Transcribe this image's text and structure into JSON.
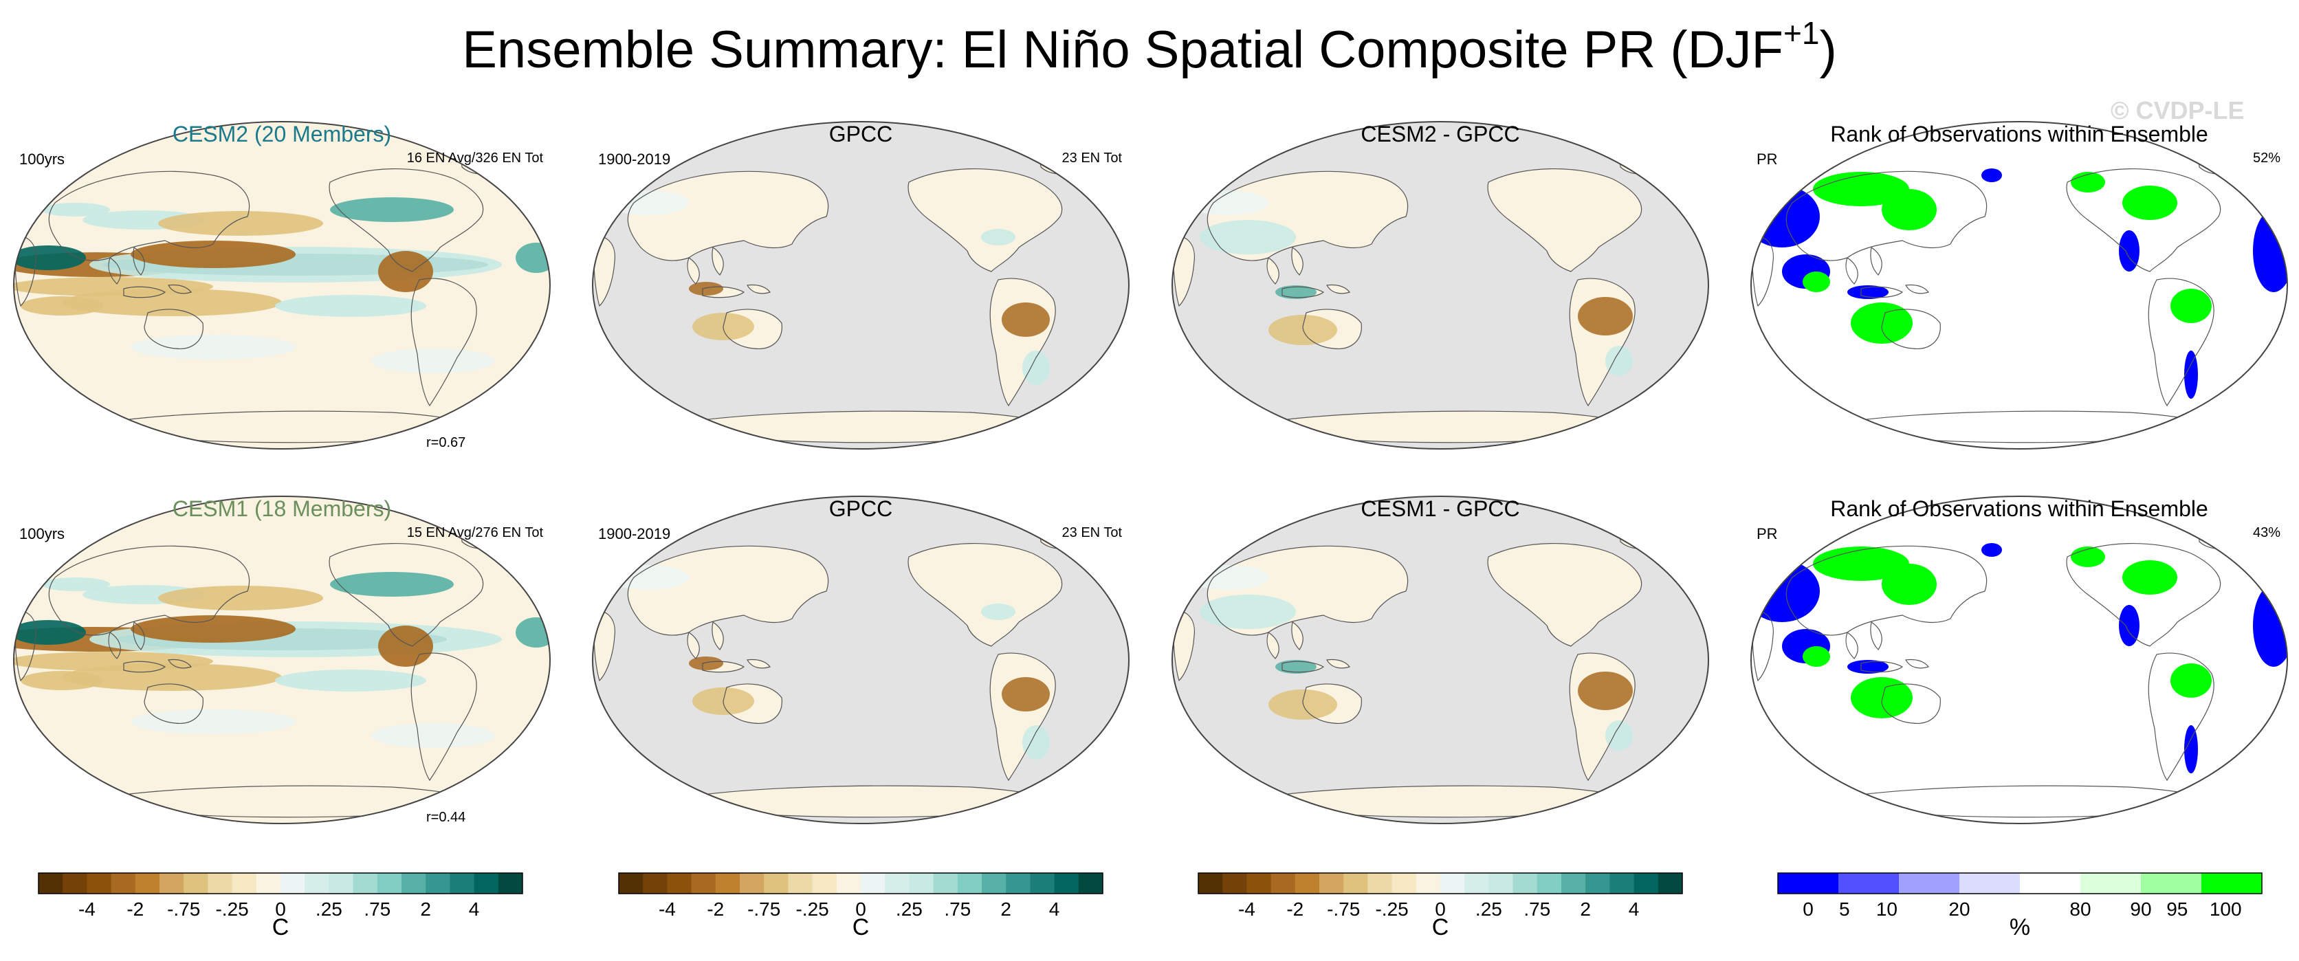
{
  "header": {
    "title_main": "Ensemble Summary: El Niño Spatial Composite PR (DJF",
    "title_sup": "+1",
    "title_end": ")",
    "watermark": "© CVDP-LE"
  },
  "rows": [
    {
      "model": {
        "title": "CESM2 (20 Members)",
        "title_color": "#1a7a8c",
        "left_label": "100yrs",
        "right_label": "16 EN Avg/326 EN Tot",
        "corr": "r=0.67"
      },
      "obs": {
        "title": "GPCC",
        "left_label": "1900-2019",
        "right_label": "23 EN Tot"
      },
      "diff": {
        "title": "CESM2 - GPCC"
      },
      "rank": {
        "title": "Rank of Observations within Ensemble",
        "left_label": "PR",
        "right_label": "52%"
      }
    },
    {
      "model": {
        "title": "CESM1 (18 Members)",
        "title_color": "#6a8f5c",
        "left_label": "100yrs",
        "right_label": "15 EN Avg/276 EN Tot",
        "corr": "r=0.44"
      },
      "obs": {
        "title": "GPCC",
        "left_label": "1900-2019",
        "right_label": "23 EN Tot"
      },
      "diff": {
        "title": "CESM1 - GPCC"
      },
      "rank": {
        "title": "Rank of Observations within Ensemble",
        "left_label": "PR",
        "right_label": "43%"
      }
    }
  ],
  "colorbars": {
    "precip": {
      "units": "C",
      "tick_labels": [
        "-4",
        "-2",
        "-.75",
        "-.25",
        "0",
        ".25",
        ".75",
        "2",
        "4"
      ],
      "colors": [
        "#543005",
        "#744108",
        "#8c510a",
        "#a86a20",
        "#bf812d",
        "#d2a660",
        "#dfc27d",
        "#ecdaa9",
        "#f6e8c3",
        "#faf3e2",
        "#ecf5f3",
        "#d6eeea",
        "#c7eae5",
        "#a3dad1",
        "#80cdc1",
        "#57b0a5",
        "#35978f",
        "#1d8078",
        "#01665e",
        "#024a40"
      ]
    },
    "rank": {
      "units": "%",
      "tick_labels": [
        "0",
        "5",
        "10",
        "20",
        "80",
        "90",
        "95",
        "100"
      ],
      "colors": [
        "#0000ff",
        "#5050ff",
        "#a0a0ff",
        "#dcdcff",
        "#ffffff",
        "#dcffdc",
        "#a0ffa0",
        "#00ff00"
      ]
    }
  },
  "map_colors": {
    "ocean_blank": "#e3e3e3",
    "land_line": "#555555",
    "rank_low": "#0000ff",
    "rank_high": "#00ff00"
  },
  "chart_data": [
    {
      "type": "heatmap",
      "title": "CESM2 (20 Members)",
      "units": "C",
      "note": "global map field"
    },
    {
      "type": "heatmap",
      "title": "GPCC",
      "units": "C",
      "note": "global map field (land only)"
    },
    {
      "type": "heatmap",
      "title": "CESM2 - GPCC",
      "units": "C",
      "note": "global map field (land only)"
    },
    {
      "type": "heatmap",
      "title": "Rank of Observations within Ensemble",
      "units": "%",
      "note": "global map field (land only)"
    },
    {
      "type": "heatmap",
      "title": "CESM1 (18 Members)",
      "units": "C",
      "note": "global map field"
    },
    {
      "type": "heatmap",
      "title": "GPCC",
      "units": "C",
      "note": "global map field (land only)"
    },
    {
      "type": "heatmap",
      "title": "CESM1 - GPCC",
      "units": "C",
      "note": "global map field (land only)"
    },
    {
      "type": "heatmap",
      "title": "Rank of Observations within Ensemble",
      "units": "%",
      "note": "global map field (land only)"
    }
  ]
}
